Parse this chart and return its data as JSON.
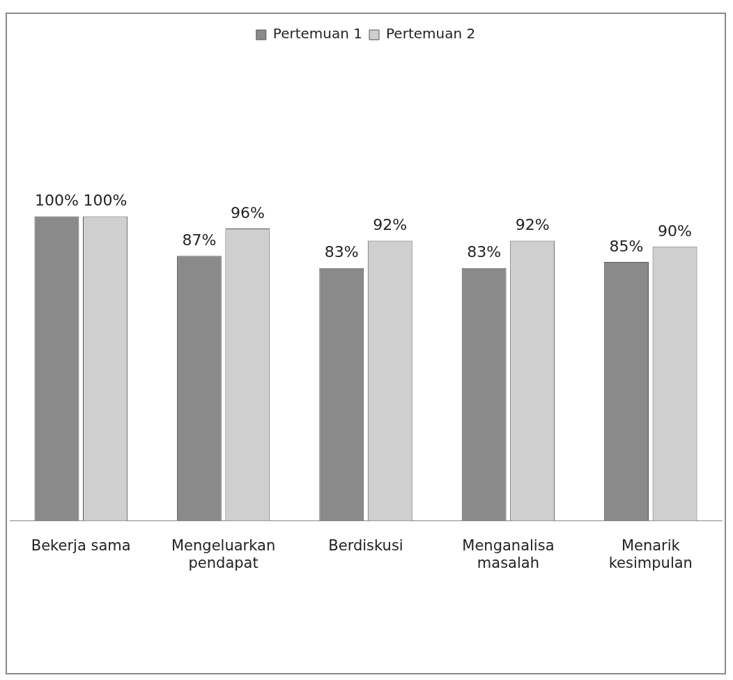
{
  "chart_data": {
    "type": "bar",
    "categories": [
      "Bekerja sama",
      "Mengeluarkan pendapat",
      "Berdiskusi",
      "Menganalisa masalah",
      "Menarik kesimpulan"
    ],
    "series": [
      {
        "name": "Pertemuan 1",
        "color": "#8a8a8a",
        "values": [
          100,
          87,
          83,
          83,
          85
        ],
        "value_labels": [
          "100%",
          "87%",
          "83%",
          "83%",
          "85%"
        ]
      },
      {
        "name": "Pertemuan 2",
        "color": "#cfcfcf",
        "values": [
          100,
          96,
          92,
          92,
          90
        ],
        "value_labels": [
          "100%",
          "96%",
          "92%",
          "92%",
          "90%"
        ]
      }
    ],
    "grid": false,
    "legend": "top"
  }
}
